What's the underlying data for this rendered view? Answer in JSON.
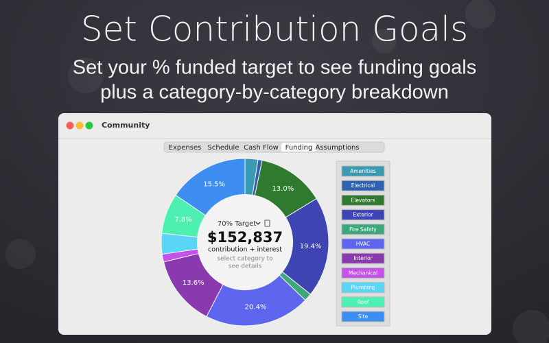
{
  "header": {
    "title": "Set Contribution Goals",
    "subtitle_lines": [
      "Set your % funded target to see funding goals",
      "plus a category-by-category breakdown"
    ]
  },
  "window": {
    "title": "Community",
    "tabs": [
      "Expenses",
      "Schedule",
      "Cash Flow",
      "Funding",
      "Assumptions"
    ],
    "selected_tab": 3
  },
  "center": {
    "target": "70% Target",
    "amount": "$152,837",
    "amount_caption": "contribution + interest",
    "hint_lines": [
      "select category to",
      "see details"
    ]
  },
  "chart_data": {
    "type": "pie",
    "inner_radius_ratio": 0.57,
    "categories": [
      "Amenities",
      "Electrical",
      "Elevators",
      "Exterior",
      "Fire Safety",
      "HVAC",
      "Interior",
      "Mechanical",
      "Plumbing",
      "Roof",
      "Site"
    ],
    "values": [
      2.5,
      0.8,
      13.0,
      19.4,
      1.5,
      20.4,
      13.6,
      1.5,
      4.0,
      7.8,
      15.5
    ],
    "value_labels": [
      null,
      null,
      "13.0%",
      "19.4%",
      null,
      "20.4%",
      "13.6%",
      null,
      null,
      "7.8%",
      "15.5%"
    ],
    "colors": [
      "#3a9ab2",
      "#2f63b2",
      "#2f7a2f",
      "#3e45b2",
      "#3fa77c",
      "#5f66ee",
      "#8a3aae",
      "#c451ea",
      "#5ad5f5",
      "#4ef0b2",
      "#3d8ef0"
    ]
  }
}
